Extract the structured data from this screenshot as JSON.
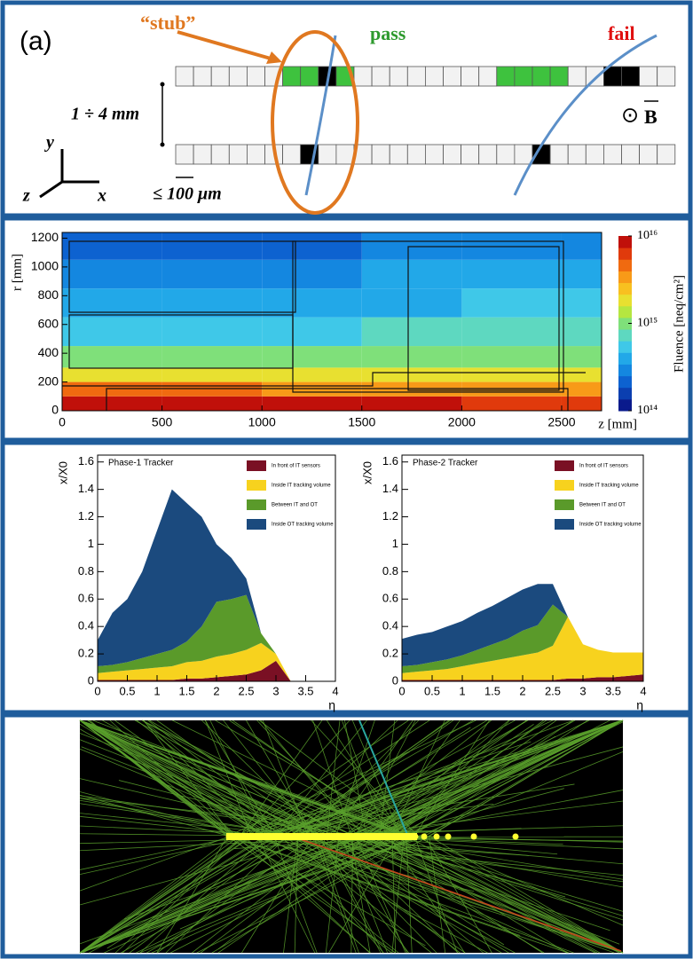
{
  "diagram": {
    "label": "(a)",
    "stub": "“stub”",
    "pass": "pass",
    "fail": "fail",
    "spacing": "1 ÷ 4 mm",
    "pitch": "≤ 100 μm",
    "axis_y": "y",
    "axis_z": "z",
    "axis_x": "x",
    "field_dot": "⊙",
    "field": "B"
  },
  "chart_data": [
    {
      "type": "heatmap",
      "xlabel": "z [mm]",
      "ylabel": "r [mm]",
      "colorbar_label": "Fluence [neq/cm²]",
      "x_edges": [
        0,
        500,
        1000,
        1500,
        2000,
        2500,
        2700
      ],
      "y_edges": [
        0,
        100,
        200,
        300,
        450,
        650,
        850,
        1050,
        1240
      ],
      "values": [
        [
          1e+16,
          1e+16,
          9000000000000000.0,
          8000000000000000.0,
          7000000000000000.0,
          6000000000000000.0
        ],
        [
          4000000000000000.0,
          4000000000000000.0,
          3500000000000000.0,
          3000000000000000.0,
          3000000000000000.0,
          3000000000000000.0
        ],
        [
          2000000000000000.0,
          2000000000000000.0,
          2000000000000000.0,
          1800000000000000.0,
          1800000000000000.0,
          1800000000000000.0
        ],
        [
          1000000000000000.0,
          1000000000000000.0,
          1000000000000000.0,
          1000000000000000.0,
          1000000000000000.0,
          1100000000000000.0
        ],
        [
          600000000000000.0,
          600000000000000.0,
          600000000000000.0,
          650000000000000.0,
          700000000000000.0,
          700000000000000.0
        ],
        [
          400000000000000.0,
          400000000000000.0,
          420000000000000.0,
          450000000000000.0,
          500000000000000.0,
          500000000000000.0
        ],
        [
          300000000000000.0,
          300000000000000.0,
          320000000000000.0,
          350000000000000.0,
          380000000000000.0,
          400000000000000.0
        ],
        [
          220000000000000.0,
          220000000000000.0,
          240000000000000.0,
          260000000000000.0,
          280000000000000.0,
          300000000000000.0
        ]
      ],
      "xlim": [
        0,
        2700
      ],
      "ylim": [
        0,
        1240
      ],
      "xticks": [
        0,
        500,
        1000,
        1500,
        2000,
        2500
      ],
      "yticks": [
        0,
        200,
        400,
        600,
        800,
        1000,
        1200
      ],
      "zlim": [
        100000000000000.0,
        1e+16
      ],
      "log_scale": true,
      "zticks": [
        {
          "value": 100000000000000.0,
          "label": "10¹⁴"
        },
        {
          "value": 1000000000000000.0,
          "label": "10¹⁵"
        },
        {
          "value": 1e+16,
          "label": "10¹⁶"
        }
      ],
      "colormap": [
        "#0a1a8c",
        "#0b3fb0",
        "#0d62d0",
        "#1487e0",
        "#22a8e8",
        "#3fc8e8",
        "#5ed8c0",
        "#7fe07a",
        "#b5e640",
        "#e8e030",
        "#f8c020",
        "#f89a18",
        "#f06a10",
        "#e03a0c",
        "#c0100a"
      ]
    },
    {
      "type": "area",
      "stacked": true,
      "title": "Phase-1 Tracker",
      "xlabel": "η",
      "ylabel": "x/X0",
      "legend": "upper right",
      "x": [
        0,
        0.25,
        0.5,
        0.75,
        1,
        1.25,
        1.5,
        1.75,
        2,
        2.25,
        2.5,
        2.75,
        3,
        3.25,
        3.5,
        3.75,
        4
      ],
      "series": [
        {
          "name": "In front of IT sensors",
          "color": "#7a1024",
          "values": [
            0.01,
            0.01,
            0.01,
            0.01,
            0.01,
            0.01,
            0.02,
            0.02,
            0.03,
            0.04,
            0.05,
            0.08,
            0.15,
            0,
            0,
            0,
            0
          ]
        },
        {
          "name": "Inside IT tracking volume",
          "color": "#f7d21e",
          "values": [
            0.05,
            0.06,
            0.07,
            0.08,
            0.09,
            0.1,
            0.12,
            0.13,
            0.15,
            0.16,
            0.18,
            0.2,
            0.05,
            0,
            0,
            0,
            0
          ]
        },
        {
          "name": "Between IT and OT",
          "color": "#5a9a2a",
          "values": [
            0.05,
            0.05,
            0.06,
            0.08,
            0.1,
            0.12,
            0.15,
            0.25,
            0.4,
            0.4,
            0.4,
            0.07,
            0,
            0,
            0,
            0,
            0
          ]
        },
        {
          "name": "Inside OT tracking volume",
          "color": "#1b4a7e",
          "values": [
            0.19,
            0.38,
            0.46,
            0.63,
            0.9,
            1.17,
            1.01,
            0.8,
            0.42,
            0.3,
            0.12,
            0,
            0,
            0,
            0,
            0,
            0
          ]
        }
      ],
      "xlim": [
        0,
        4
      ],
      "ylim": [
        0,
        1.65
      ],
      "xticks": [
        0,
        0.5,
        1,
        1.5,
        2,
        2.5,
        3,
        3.5,
        4
      ],
      "yticks": [
        0,
        0.2,
        0.4,
        0.6,
        0.8,
        1,
        1.2,
        1.4,
        1.6
      ]
    },
    {
      "type": "area",
      "stacked": true,
      "title": "Phase-2 Tracker",
      "xlabel": "η",
      "ylabel": "x/X0",
      "legend": "upper right",
      "x": [
        0,
        0.25,
        0.5,
        0.75,
        1,
        1.25,
        1.5,
        1.75,
        2,
        2.25,
        2.5,
        2.75,
        3,
        3.25,
        3.5,
        3.75,
        4
      ],
      "series": [
        {
          "name": "In front of IT sensors",
          "color": "#7a1024",
          "values": [
            0.01,
            0.01,
            0.01,
            0.01,
            0.01,
            0.01,
            0.01,
            0.01,
            0.01,
            0.01,
            0.01,
            0.02,
            0.02,
            0.03,
            0.03,
            0.04,
            0.05
          ]
        },
        {
          "name": "Inside IT tracking volume",
          "color": "#f7d21e",
          "values": [
            0.05,
            0.06,
            0.07,
            0.08,
            0.1,
            0.12,
            0.14,
            0.16,
            0.18,
            0.2,
            0.25,
            0.45,
            0.25,
            0.2,
            0.18,
            0.17,
            0.16
          ]
        },
        {
          "name": "Between IT and OT",
          "color": "#5a9a2a",
          "values": [
            0.05,
            0.05,
            0.06,
            0.07,
            0.08,
            0.1,
            0.12,
            0.14,
            0.18,
            0.2,
            0.3,
            0,
            0,
            0,
            0,
            0,
            0
          ]
        },
        {
          "name": "Inside OT tracking volume",
          "color": "#1b4a7e",
          "values": [
            0.2,
            0.22,
            0.22,
            0.24,
            0.25,
            0.27,
            0.28,
            0.3,
            0.3,
            0.3,
            0.15,
            0,
            0,
            0,
            0,
            0,
            0
          ]
        }
      ],
      "xlim": [
        0,
        4
      ],
      "ylim": [
        0,
        1.65
      ],
      "xticks": [
        0,
        0.5,
        1,
        1.5,
        2,
        2.5,
        3,
        3.5,
        4
      ],
      "yticks": [
        0,
        0.2,
        0.4,
        0.6,
        0.8,
        1,
        1.2,
        1.4,
        1.6
      ]
    }
  ]
}
